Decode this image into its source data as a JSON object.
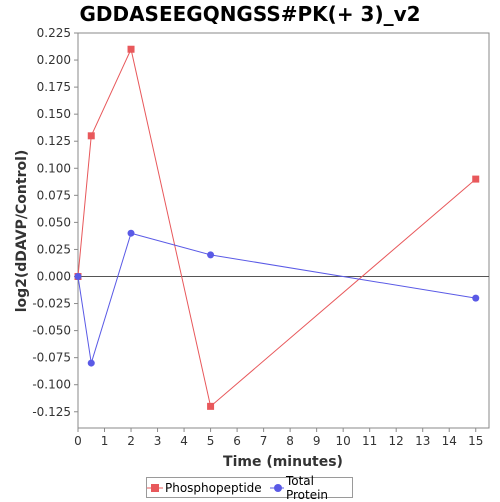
{
  "chart_data": {
    "type": "line",
    "title": "GDDASEEGQNGSS#PK(+ 3)_v2",
    "xlabel": "Time (minutes)",
    "ylabel": "log2(dDAVP/Control)",
    "xlim": [
      0,
      15.5
    ],
    "ylim": [
      -0.14,
      0.225
    ],
    "x_ticks": [
      0,
      1,
      2,
      3,
      4,
      5,
      6,
      7,
      8,
      9,
      10,
      11,
      12,
      13,
      14,
      15
    ],
    "y_ticks": [
      -0.125,
      -0.1,
      -0.075,
      -0.05,
      -0.025,
      0.0,
      0.025,
      0.05,
      0.075,
      0.1,
      0.125,
      0.15,
      0.175,
      0.2,
      0.225
    ],
    "y_tick_labels": [
      "-0.125",
      "-0.100",
      "-0.075",
      "-0.050",
      "-0.025",
      "0.000",
      "0.025",
      "0.050",
      "0.075",
      "0.100",
      "0.125",
      "0.150",
      "0.175",
      "0.200",
      "0.225"
    ],
    "zero_line": true,
    "grid": false,
    "legend_position": "bottom",
    "series": [
      {
        "name": "Phosphopeptide",
        "color": "#e8585b",
        "marker": "square",
        "x": [
          0,
          0.5,
          2,
          5,
          15
        ],
        "y": [
          0.0,
          0.13,
          0.21,
          -0.12,
          0.09
        ]
      },
      {
        "name": "Total Protein",
        "color": "#5a5ae6",
        "marker": "circle",
        "x": [
          0,
          0.5,
          2,
          5,
          15
        ],
        "y": [
          0.0,
          -0.08,
          0.04,
          0.02,
          -0.02
        ]
      }
    ]
  }
}
